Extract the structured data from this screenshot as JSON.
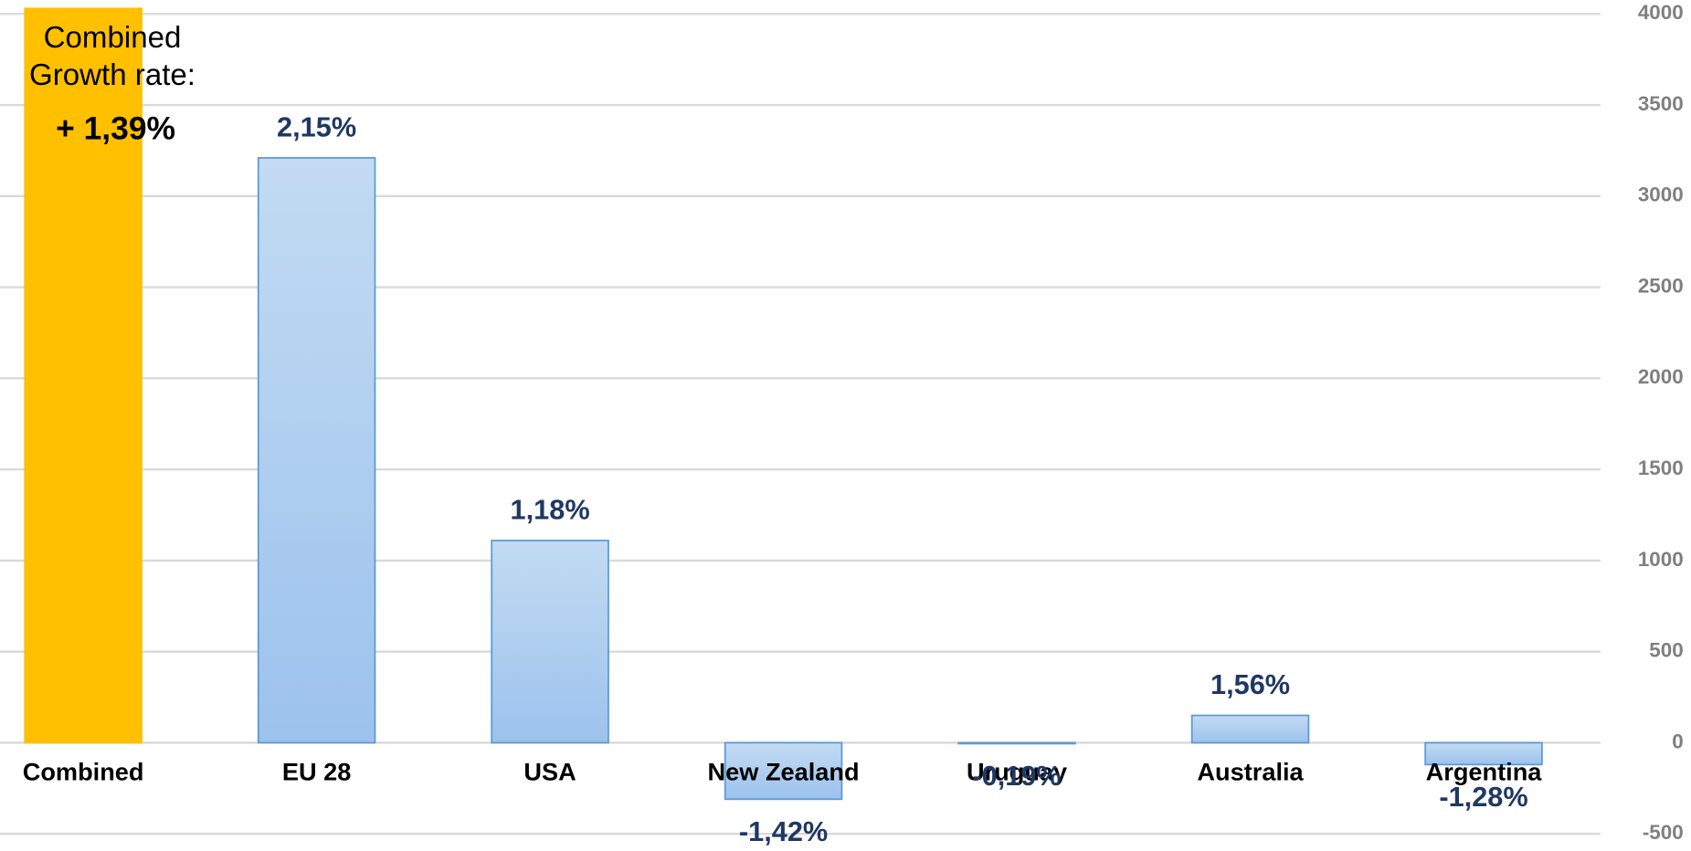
{
  "chart_data": {
    "type": "bar",
    "categories": [
      "Combined",
      "EU 28",
      "USA",
      "New Zealand",
      "Uruguay",
      "Australia",
      "Argentina"
    ],
    "values": [
      4030,
      3210,
      1110,
      -310,
      -5,
      150,
      -120
    ],
    "colors": [
      "#ffc000",
      "#a7c9ee",
      "#a7c9ee",
      "#a7c9ee",
      "#a7c9ee",
      "#a7c9ee",
      "#a7c9ee"
    ],
    "growth_labels": [
      "+ 1,39%",
      "2,15%",
      "1,18%",
      "-1,42%",
      "-0,19%",
      "1,56%",
      "-1,28%"
    ],
    "combined_note": [
      "Combined",
      "Growth rate:"
    ],
    "ylim": [
      -500,
      4000
    ],
    "yticks": [
      -500,
      0,
      500,
      1000,
      1500,
      2000,
      2500,
      3000,
      3500,
      4000
    ],
    "grid": true,
    "y_axis_side": "right"
  }
}
